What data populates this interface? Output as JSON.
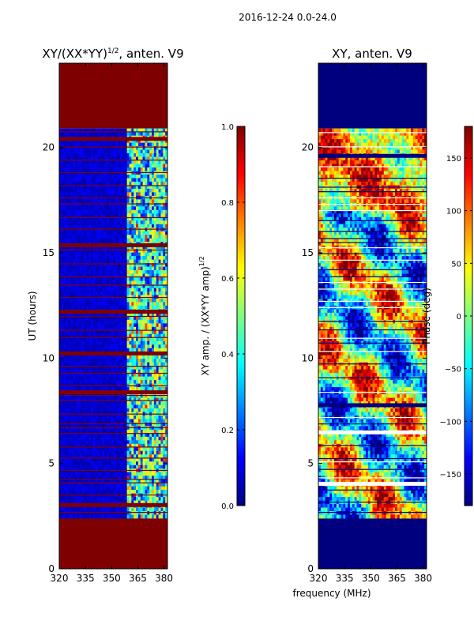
{
  "suptitle": "2016-12-24 0.0-24.0",
  "xlabel_shared": "frequency (MHz)",
  "colors": {
    "jet": [
      "#00007f",
      "#0000ff",
      "#007fff",
      "#00ffff",
      "#7fff7f",
      "#ffff00",
      "#ff7f00",
      "#ff0000",
      "#7f0000"
    ]
  },
  "chart_data": [
    {
      "type": "heatmap",
      "title": "XY/(XX*YY)",
      "title_superscript": "1/2",
      "title_suffix": ", anten. V9",
      "xlabel": "",
      "ylabel": "UT (hours)",
      "xlim": [
        320,
        382
      ],
      "ylim": [
        0,
        24
      ],
      "xticks": [
        320,
        335,
        350,
        365,
        380
      ],
      "yticks": [
        0,
        5,
        10,
        15,
        20
      ],
      "data_hours": [
        2.4,
        20.9
      ],
      "colorbar": {
        "label": "XY amp. / (XX*YY amp)",
        "label_superscript": "1/2",
        "range": [
          0.0,
          1.0
        ],
        "ticks": [
          "0.0",
          "0.2",
          "0.4",
          "0.6",
          "0.8",
          "1.0"
        ],
        "tick_values": [
          0.0,
          0.2,
          0.4,
          0.6,
          0.8,
          1.0
        ]
      }
    },
    {
      "type": "heatmap",
      "title": "XY, anten. V9",
      "xlabel": "frequency (MHz)",
      "ylabel": "",
      "xlim": [
        320,
        382
      ],
      "ylim": [
        0,
        24
      ],
      "xticks": [
        320,
        335,
        350,
        365,
        380
      ],
      "yticks": [
        0,
        5,
        10,
        15,
        20
      ],
      "data_hours": [
        2.4,
        20.9
      ],
      "colorbar": {
        "label": "Phase (deg)",
        "range": [
          -180,
          180
        ],
        "ticks": [
          "−150",
          "−100",
          "−50",
          "0",
          "50",
          "100",
          "150"
        ],
        "tick_values": [
          -150,
          -100,
          -50,
          0,
          50,
          100,
          150
        ]
      }
    }
  ]
}
